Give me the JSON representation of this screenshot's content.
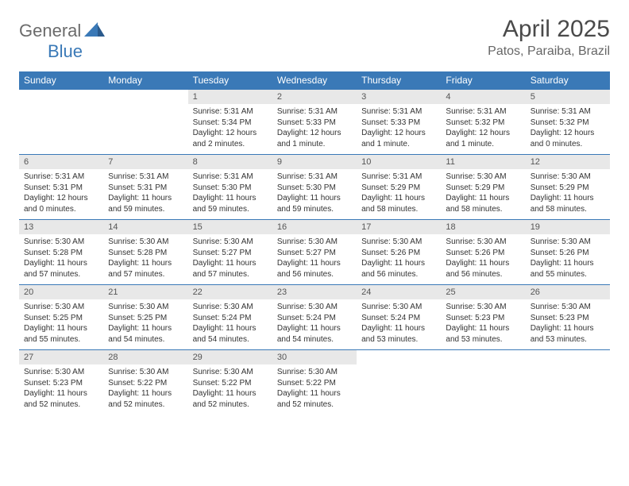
{
  "brand": {
    "general": "General",
    "blue": "Blue"
  },
  "title": "April 2025",
  "location": "Patos, Paraiba, Brazil",
  "colors": {
    "header_bg": "#3a79b7",
    "header_text": "#ffffff",
    "daynum_bg": "#e8e8e8",
    "border": "#3a79b7",
    "text": "#333333",
    "brand_gray": "#6b6b6b",
    "brand_blue": "#3a79b7"
  },
  "weekdays": [
    "Sunday",
    "Monday",
    "Tuesday",
    "Wednesday",
    "Thursday",
    "Friday",
    "Saturday"
  ],
  "weeks": [
    [
      null,
      null,
      {
        "n": "1",
        "sr": "5:31 AM",
        "ss": "5:34 PM",
        "dl": "12 hours and 2 minutes."
      },
      {
        "n": "2",
        "sr": "5:31 AM",
        "ss": "5:33 PM",
        "dl": "12 hours and 1 minute."
      },
      {
        "n": "3",
        "sr": "5:31 AM",
        "ss": "5:33 PM",
        "dl": "12 hours and 1 minute."
      },
      {
        "n": "4",
        "sr": "5:31 AM",
        "ss": "5:32 PM",
        "dl": "12 hours and 1 minute."
      },
      {
        "n": "5",
        "sr": "5:31 AM",
        "ss": "5:32 PM",
        "dl": "12 hours and 0 minutes."
      }
    ],
    [
      {
        "n": "6",
        "sr": "5:31 AM",
        "ss": "5:31 PM",
        "dl": "12 hours and 0 minutes."
      },
      {
        "n": "7",
        "sr": "5:31 AM",
        "ss": "5:31 PM",
        "dl": "11 hours and 59 minutes."
      },
      {
        "n": "8",
        "sr": "5:31 AM",
        "ss": "5:30 PM",
        "dl": "11 hours and 59 minutes."
      },
      {
        "n": "9",
        "sr": "5:31 AM",
        "ss": "5:30 PM",
        "dl": "11 hours and 59 minutes."
      },
      {
        "n": "10",
        "sr": "5:31 AM",
        "ss": "5:29 PM",
        "dl": "11 hours and 58 minutes."
      },
      {
        "n": "11",
        "sr": "5:30 AM",
        "ss": "5:29 PM",
        "dl": "11 hours and 58 minutes."
      },
      {
        "n": "12",
        "sr": "5:30 AM",
        "ss": "5:29 PM",
        "dl": "11 hours and 58 minutes."
      }
    ],
    [
      {
        "n": "13",
        "sr": "5:30 AM",
        "ss": "5:28 PM",
        "dl": "11 hours and 57 minutes."
      },
      {
        "n": "14",
        "sr": "5:30 AM",
        "ss": "5:28 PM",
        "dl": "11 hours and 57 minutes."
      },
      {
        "n": "15",
        "sr": "5:30 AM",
        "ss": "5:27 PM",
        "dl": "11 hours and 57 minutes."
      },
      {
        "n": "16",
        "sr": "5:30 AM",
        "ss": "5:27 PM",
        "dl": "11 hours and 56 minutes."
      },
      {
        "n": "17",
        "sr": "5:30 AM",
        "ss": "5:26 PM",
        "dl": "11 hours and 56 minutes."
      },
      {
        "n": "18",
        "sr": "5:30 AM",
        "ss": "5:26 PM",
        "dl": "11 hours and 56 minutes."
      },
      {
        "n": "19",
        "sr": "5:30 AM",
        "ss": "5:26 PM",
        "dl": "11 hours and 55 minutes."
      }
    ],
    [
      {
        "n": "20",
        "sr": "5:30 AM",
        "ss": "5:25 PM",
        "dl": "11 hours and 55 minutes."
      },
      {
        "n": "21",
        "sr": "5:30 AM",
        "ss": "5:25 PM",
        "dl": "11 hours and 54 minutes."
      },
      {
        "n": "22",
        "sr": "5:30 AM",
        "ss": "5:24 PM",
        "dl": "11 hours and 54 minutes."
      },
      {
        "n": "23",
        "sr": "5:30 AM",
        "ss": "5:24 PM",
        "dl": "11 hours and 54 minutes."
      },
      {
        "n": "24",
        "sr": "5:30 AM",
        "ss": "5:24 PM",
        "dl": "11 hours and 53 minutes."
      },
      {
        "n": "25",
        "sr": "5:30 AM",
        "ss": "5:23 PM",
        "dl": "11 hours and 53 minutes."
      },
      {
        "n": "26",
        "sr": "5:30 AM",
        "ss": "5:23 PM",
        "dl": "11 hours and 53 minutes."
      }
    ],
    [
      {
        "n": "27",
        "sr": "5:30 AM",
        "ss": "5:23 PM",
        "dl": "11 hours and 52 minutes."
      },
      {
        "n": "28",
        "sr": "5:30 AM",
        "ss": "5:22 PM",
        "dl": "11 hours and 52 minutes."
      },
      {
        "n": "29",
        "sr": "5:30 AM",
        "ss": "5:22 PM",
        "dl": "11 hours and 52 minutes."
      },
      {
        "n": "30",
        "sr": "5:30 AM",
        "ss": "5:22 PM",
        "dl": "11 hours and 52 minutes."
      },
      null,
      null,
      null
    ]
  ],
  "labels": {
    "sunrise": "Sunrise:",
    "sunset": "Sunset:",
    "daylight": "Daylight:"
  }
}
